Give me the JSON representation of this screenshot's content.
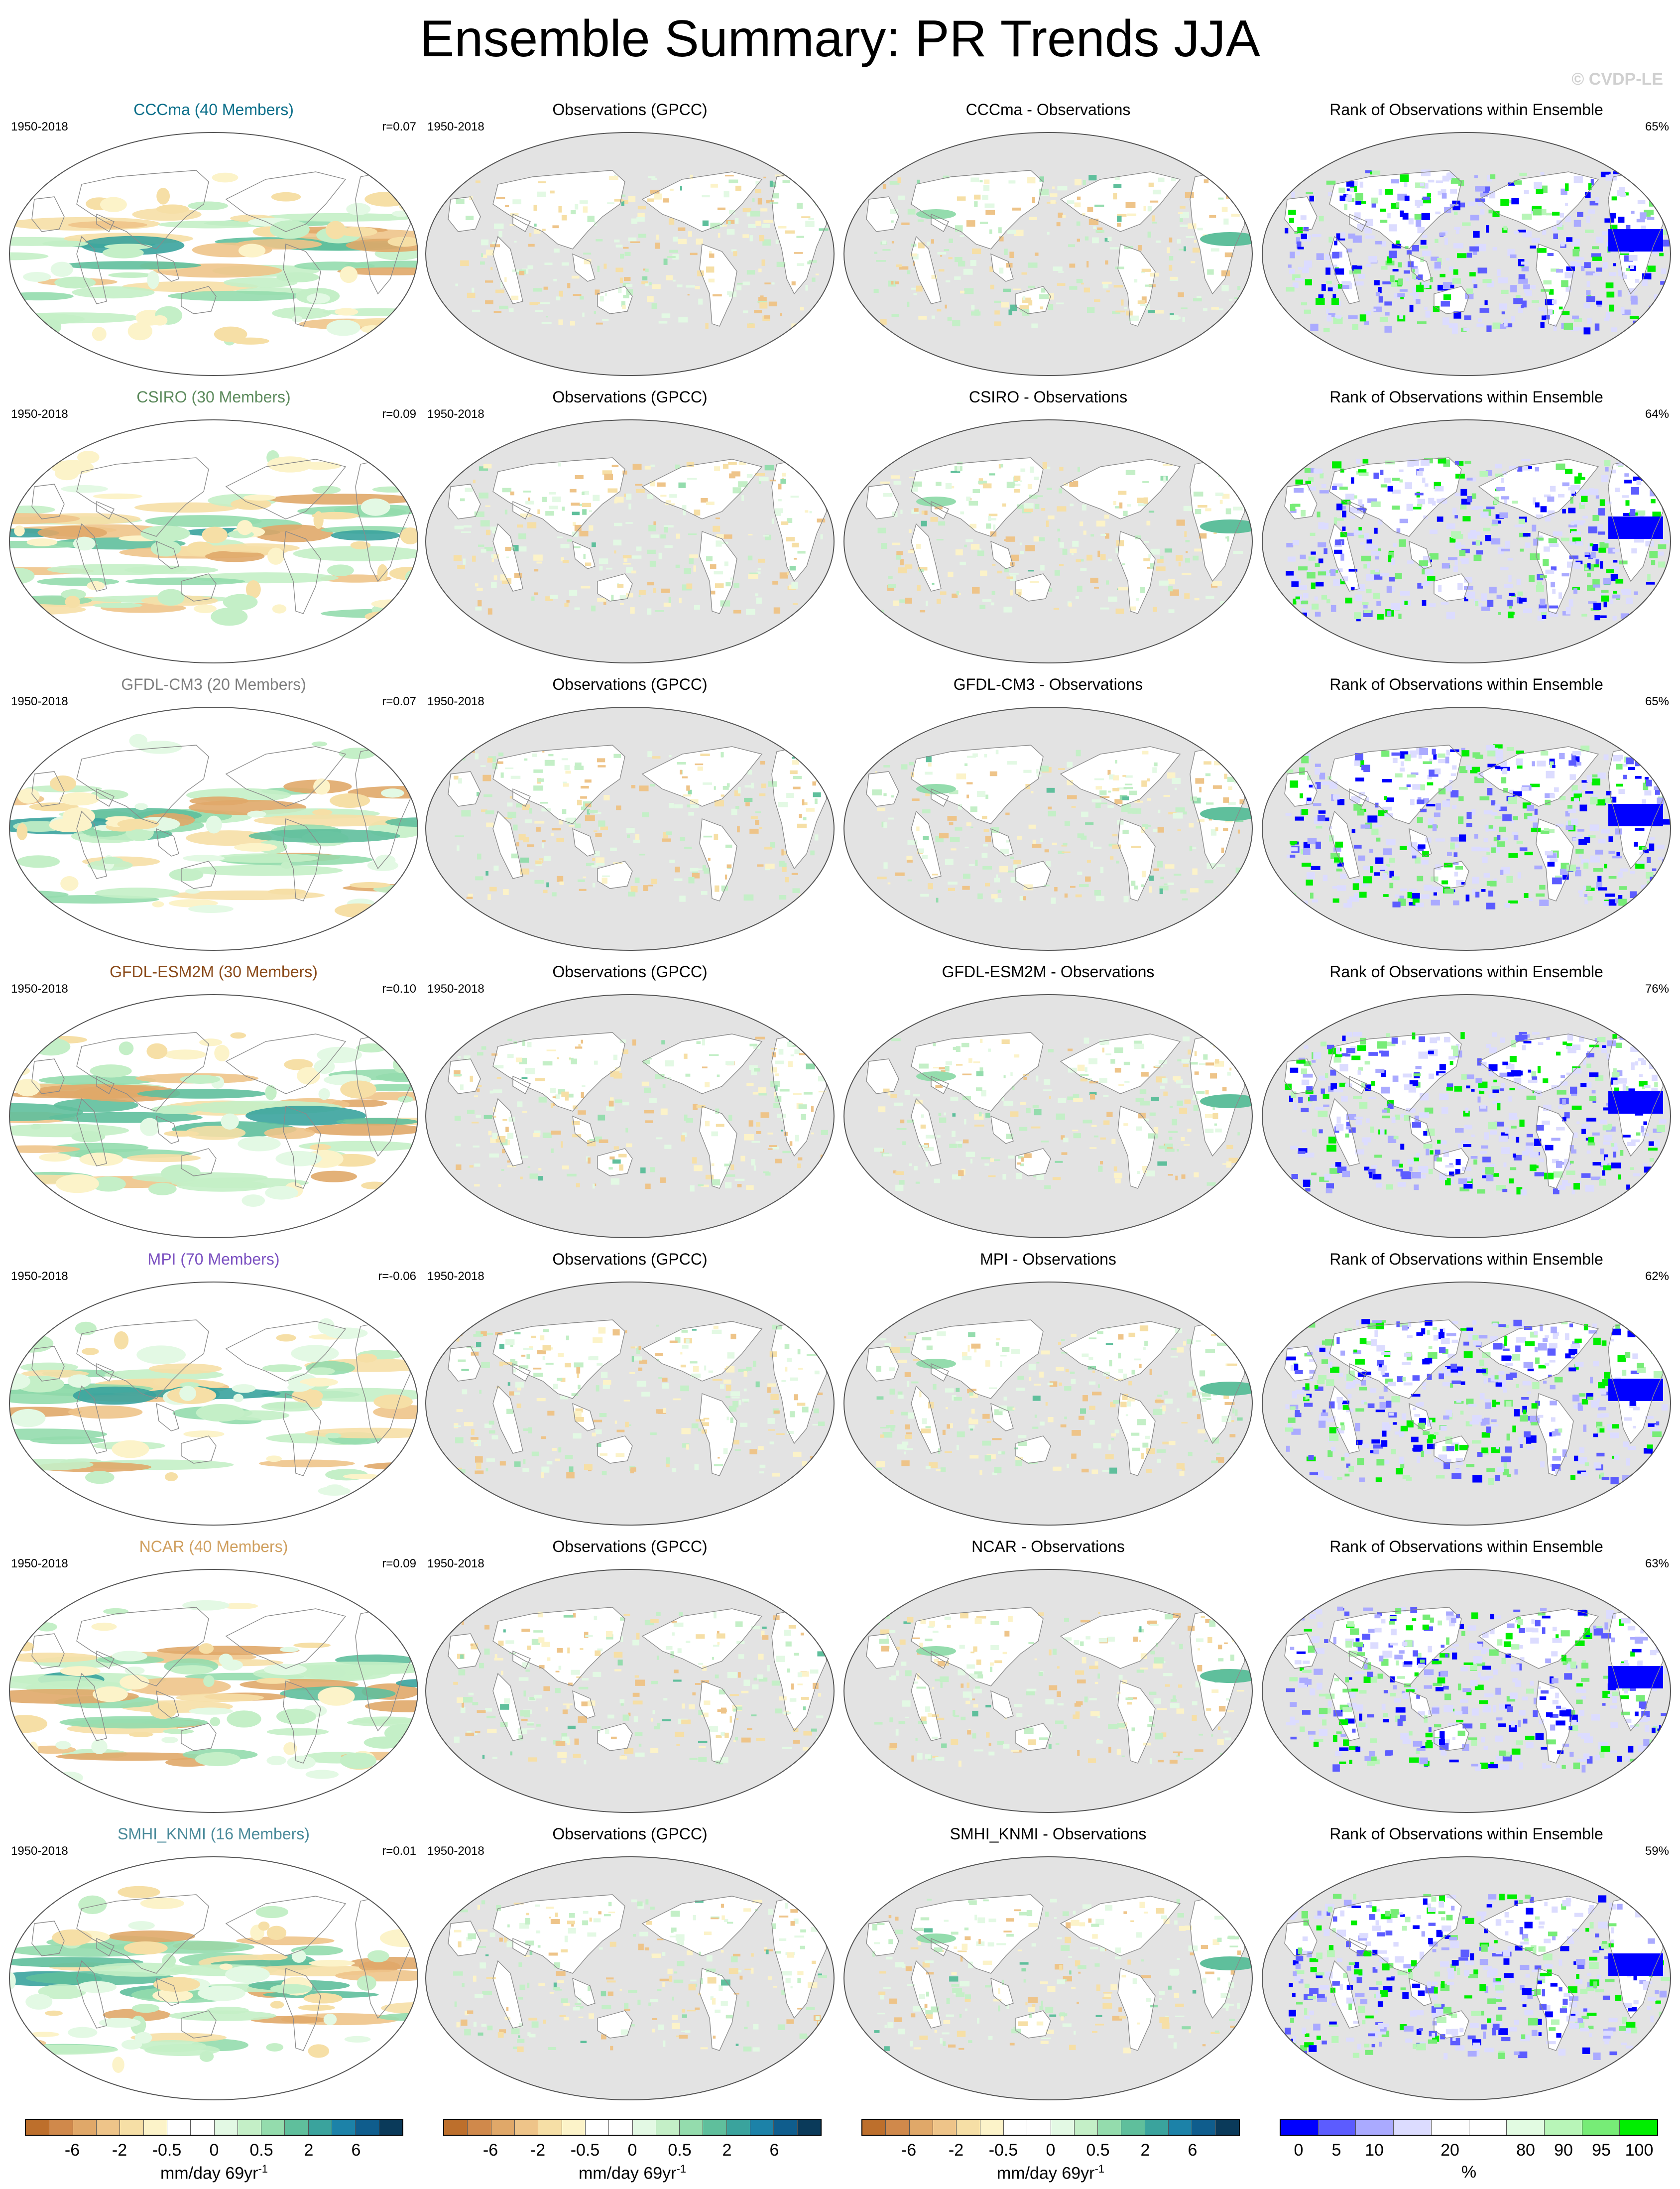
{
  "title": "Ensemble Summary: PR Trends JJA",
  "watermark": "© CVDP-LE",
  "colors": {
    "ocean_obs": "#e3e3e3",
    "land": "#ffffff",
    "coast": "#8a8a8a",
    "trend_scale": [
      "#bd6f2c",
      "#d0894b",
      "#e0a869",
      "#eec489",
      "#f6dfa6",
      "#fcf3c9",
      "#ffffff",
      "#ffffff",
      "#e3f9e4",
      "#c4efc7",
      "#94dcad",
      "#5fbf9c",
      "#3aa39d",
      "#1c82a8",
      "#0f5d8d",
      "#0a3a5a"
    ],
    "rank_scale": [
      "#0000ff",
      "#5c5cff",
      "#aaaaff",
      "#dcdcff",
      "#ffffff",
      "#ffffff",
      "#e2fbe2",
      "#b8f5b8",
      "#77ec77",
      "#00ee00"
    ]
  },
  "rows": [
    {
      "model": "CCCma (40 Members)",
      "model_color": "#0b6f8a",
      "period": "1950-2018",
      "r": "r=0.07",
      "obs": "Observations (GPCC)",
      "diff": "CCCma - Observations",
      "rank_title": "Rank of Observations within Ensemble",
      "rank": "65%"
    },
    {
      "model": "CSIRO (30 Members)",
      "model_color": "#5c8a5c",
      "period": "1950-2018",
      "r": "r=0.09",
      "obs": "Observations (GPCC)",
      "diff": "CSIRO - Observations",
      "rank_title": "Rank of Observations within Ensemble",
      "rank": "64%"
    },
    {
      "model": "GFDL-CM3 (20 Members)",
      "model_color": "#808080",
      "period": "1950-2018",
      "r": "r=0.07",
      "obs": "Observations (GPCC)",
      "diff": "GFDL-CM3 - Observations",
      "rank_title": "Rank of Observations within Ensemble",
      "rank": "65%"
    },
    {
      "model": "GFDL-ESM2M (30 Members)",
      "model_color": "#8a4a1a",
      "period": "1950-2018",
      "r": "r=0.10",
      "obs": "Observations (GPCC)",
      "diff": "GFDL-ESM2M - Observations",
      "rank_title": "Rank of Observations within Ensemble",
      "rank": "76%"
    },
    {
      "model": "MPI (70 Members)",
      "model_color": "#7a4fc0",
      "period": "1950-2018",
      "r": "r=-0.06",
      "obs": "Observations (GPCC)",
      "diff": "MPI - Observations",
      "rank_title": "Rank of Observations within Ensemble",
      "rank": "62%"
    },
    {
      "model": "NCAR (40 Members)",
      "model_color": "#d0a060",
      "period": "1950-2018",
      "r": "r=0.09",
      "obs": "Observations (GPCC)",
      "diff": "NCAR - Observations",
      "rank_title": "Rank of Observations within Ensemble",
      "rank": "63%"
    },
    {
      "model": "SMHI_KNMI (16 Members)",
      "model_color": "#4a8a9a",
      "period": "1950-2018",
      "r": "r=0.01",
      "obs": "Observations (GPCC)",
      "diff": "SMHI_KNMI - Observations",
      "rank_title": "Rank of Observations within Ensemble",
      "rank": "59%"
    }
  ],
  "colorbars": {
    "trend_ticks": [
      "-6",
      "-2",
      "-0.5",
      "0",
      "0.5",
      "2",
      "6"
    ],
    "trend_unit": "mm/day 69yr",
    "trend_unit_sup": "-1",
    "rank_ticks": [
      "0",
      "5",
      "10",
      "20",
      "80",
      "90",
      "95",
      "100"
    ],
    "rank_unit": "%"
  }
}
